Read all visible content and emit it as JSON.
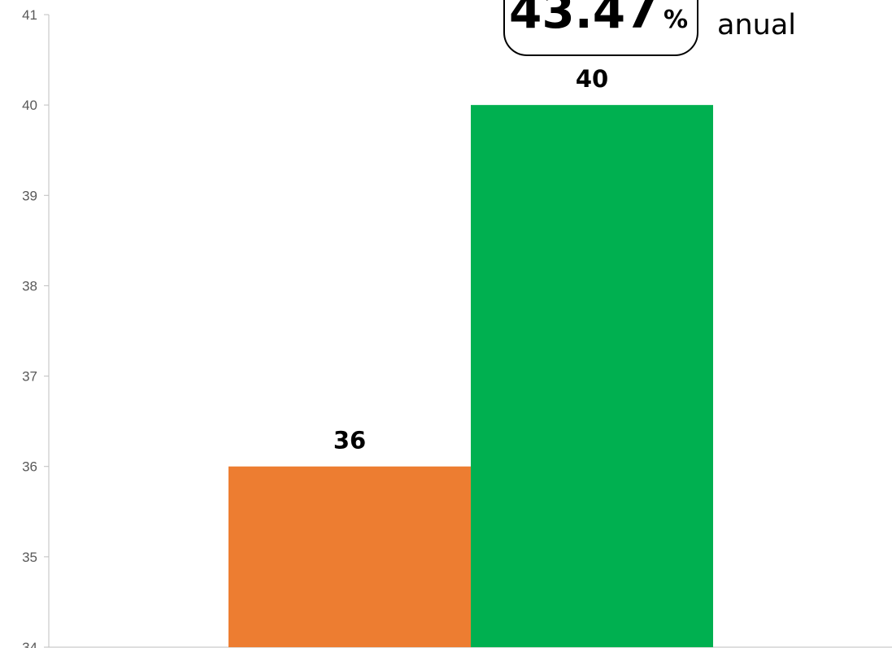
{
  "chart_data": {
    "type": "bar",
    "categories": [
      "",
      ""
    ],
    "values": [
      36,
      40
    ],
    "data_labels": [
      "36",
      "40"
    ],
    "colors": [
      "#ED7D31",
      "#00B050"
    ],
    "ylim": [
      34,
      41
    ],
    "yticks": [
      34,
      35,
      36,
      37,
      38,
      39,
      40,
      41
    ],
    "grid": false,
    "title": "",
    "xlabel": "",
    "ylabel": ""
  },
  "callout": {
    "value": "43.47",
    "unit": "%",
    "suffix": "anual"
  }
}
